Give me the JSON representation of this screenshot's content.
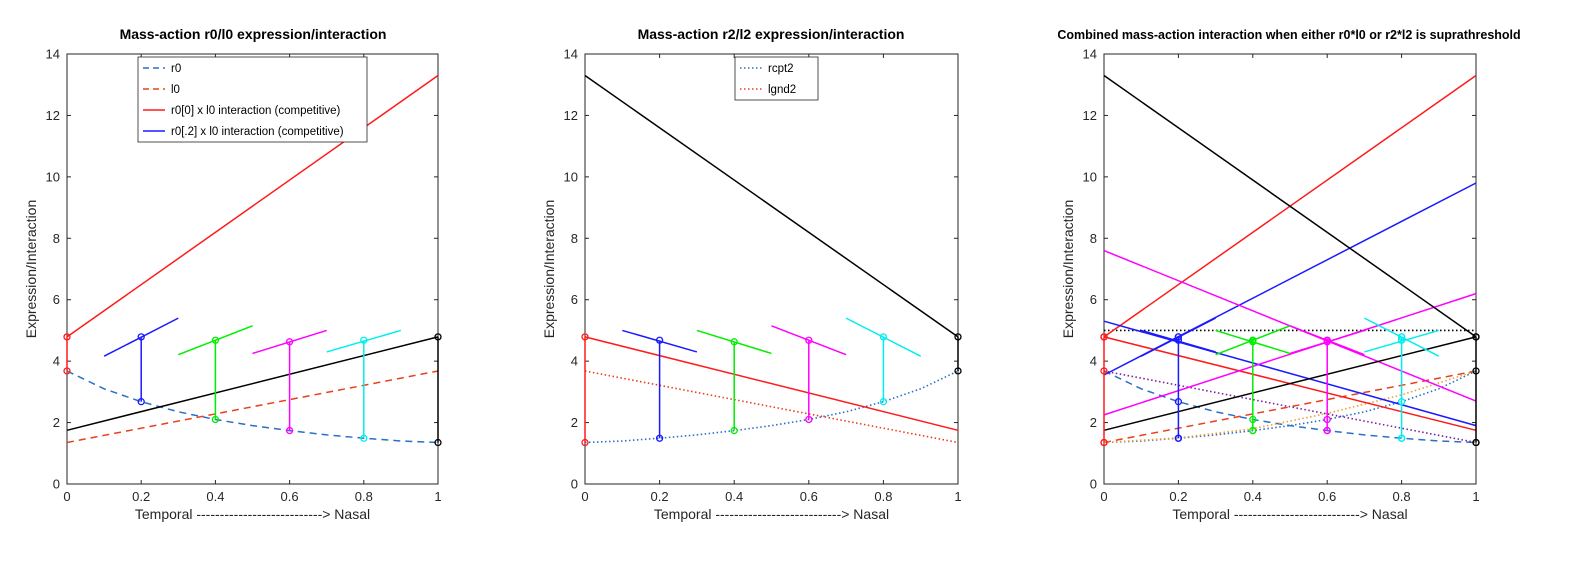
{
  "chart_data": [
    {
      "type": "line",
      "title": "Mass-action r0/l0 expression/interaction",
      "xlabel": "Temporal ---------------------------> Nasal",
      "ylabel": "Expression/Interaction",
      "xlim": [
        0,
        1
      ],
      "ylim": [
        0,
        14
      ],
      "xticks": [
        "0",
        "0.2",
        "0.4",
        "0.6",
        "0.8",
        "1"
      ],
      "yticks": [
        "0",
        "2",
        "4",
        "6",
        "8",
        "10",
        "12",
        "14"
      ],
      "grid": false,
      "legend_position": "top-center",
      "legend": [
        {
          "label": "r0",
          "color": "#2a6fc9",
          "style": "dashed"
        },
        {
          "label": "l0",
          "color": "#e8401c",
          "style": "dashed"
        },
        {
          "label": "r0[0] x l0 interaction (competitive)",
          "color": "#ff1a1a",
          "style": "solid"
        },
        {
          "label": "r0[.2] x l0 interaction (competitive)",
          "color": "#1a1aff",
          "style": "solid"
        }
      ],
      "series": [
        {
          "name": "r0",
          "color": "#2a6fc9",
          "style": "dashed",
          "x": [
            0,
            0.1,
            0.2,
            0.3,
            0.4,
            0.5,
            0.6,
            0.7,
            0.8,
            0.9,
            1
          ],
          "y": [
            3.68,
            3.1,
            2.68,
            2.35,
            2.1,
            1.9,
            1.74,
            1.6,
            1.49,
            1.4,
            1.35
          ]
        },
        {
          "name": "l0",
          "color": "#e8401c",
          "style": "dashed",
          "x": [
            0,
            1
          ],
          "y": [
            1.35,
            3.68
          ]
        },
        {
          "name": "r0[0] x l0 interaction (competitive)",
          "color": "#ff1a1a",
          "style": "solid",
          "x": [
            0,
            1
          ],
          "y": [
            4.79,
            13.3
          ]
        },
        {
          "color": "#000000",
          "style": "solid",
          "x": [
            0,
            1
          ],
          "y": [
            1.75,
            4.79
          ]
        }
      ],
      "vlines": [
        {
          "x": 0,
          "y": [
            3.68,
            4.79
          ],
          "color": "#ff1a1a"
        },
        {
          "x": 0.2,
          "y": [
            2.68,
            4.79
          ],
          "color": "#1a1aff"
        },
        {
          "x": 0.4,
          "y": [
            2.1,
            4.68
          ],
          "color": "#00ee00"
        },
        {
          "x": 0.6,
          "y": [
            1.74,
            4.63
          ],
          "color": "#ff00ff"
        },
        {
          "x": 0.8,
          "y": [
            1.49,
            4.68
          ],
          "color": "#00eeee"
        },
        {
          "x": 1,
          "y": [
            1.35,
            4.79
          ],
          "color": "#000000"
        }
      ],
      "segments": [
        {
          "x": [
            0.1,
            0.3
          ],
          "y": [
            4.16,
            5.4
          ],
          "color": "#1a1aff"
        },
        {
          "x": [
            0.3,
            0.5
          ],
          "y": [
            4.21,
            5.15
          ],
          "color": "#00ee00"
        },
        {
          "x": [
            0.5,
            0.7
          ],
          "y": [
            4.25,
            5.0
          ],
          "color": "#ff00ff"
        },
        {
          "x": [
            0.7,
            0.9
          ],
          "y": [
            4.3,
            5.0
          ],
          "color": "#00eeee"
        }
      ]
    },
    {
      "type": "line",
      "title": "Mass-action r2/l2 expression/interaction",
      "xlabel": "Temporal ---------------------------> Nasal",
      "ylabel": "Expression/Interaction",
      "xlim": [
        0,
        1
      ],
      "ylim": [
        0,
        14
      ],
      "xticks": [
        "0",
        "0.2",
        "0.4",
        "0.6",
        "0.8",
        "1"
      ],
      "yticks": [
        "0",
        "2",
        "4",
        "6",
        "8",
        "10",
        "12",
        "14"
      ],
      "grid": false,
      "legend_position": "top-center",
      "legend": [
        {
          "label": "rcpt2",
          "color": "#2a6fc9",
          "style": "dotted"
        },
        {
          "label": "lgnd2",
          "color": "#e8401c",
          "style": "dotted"
        }
      ],
      "series": [
        {
          "name": "rcpt2",
          "color": "#2a6fc9",
          "style": "dotted",
          "x": [
            0,
            0.1,
            0.2,
            0.3,
            0.4,
            0.5,
            0.6,
            0.7,
            0.8,
            0.9,
            1
          ],
          "y": [
            1.35,
            1.4,
            1.49,
            1.6,
            1.74,
            1.9,
            2.1,
            2.35,
            2.68,
            3.1,
            3.68
          ]
        },
        {
          "name": "lgnd2",
          "color": "#e8401c",
          "style": "dotted",
          "x": [
            0,
            1
          ],
          "y": [
            3.68,
            1.35
          ]
        },
        {
          "color": "#ff1a1a",
          "style": "solid",
          "x": [
            0,
            1
          ],
          "y": [
            4.79,
            1.75
          ]
        },
        {
          "color": "#000000",
          "style": "solid",
          "x": [
            0,
            1
          ],
          "y": [
            13.3,
            4.79
          ]
        }
      ],
      "vlines": [
        {
          "x": 0,
          "y": [
            1.35,
            4.79
          ],
          "color": "#ff1a1a"
        },
        {
          "x": 0.2,
          "y": [
            1.49,
            4.68
          ],
          "color": "#1a1aff"
        },
        {
          "x": 0.4,
          "y": [
            1.74,
            4.63
          ],
          "color": "#00ee00"
        },
        {
          "x": 0.6,
          "y": [
            2.1,
            4.68
          ],
          "color": "#ff00ff"
        },
        {
          "x": 0.8,
          "y": [
            2.68,
            4.79
          ],
          "color": "#00eeee"
        },
        {
          "x": 1,
          "y": [
            3.68,
            4.79
          ],
          "color": "#000000"
        }
      ],
      "segments": [
        {
          "x": [
            0.1,
            0.3
          ],
          "y": [
            5.0,
            4.3
          ],
          "color": "#1a1aff"
        },
        {
          "x": [
            0.3,
            0.5
          ],
          "y": [
            5.0,
            4.25
          ],
          "color": "#00ee00"
        },
        {
          "x": [
            0.5,
            0.7
          ],
          "y": [
            5.15,
            4.21
          ],
          "color": "#ff00ff"
        },
        {
          "x": [
            0.7,
            0.9
          ],
          "y": [
            5.4,
            4.16
          ],
          "color": "#00eeee"
        }
      ]
    },
    {
      "type": "line",
      "title": "Combined mass-action interaction when either r0*l0 or r2*l2 is suprathreshold",
      "xlabel": "Temporal ---------------------------> Nasal",
      "ylabel": "Expression/Interaction",
      "xlim": [
        0,
        1
      ],
      "ylim": [
        0,
        14
      ],
      "xticks": [
        "0",
        "0.2",
        "0.4",
        "0.6",
        "0.8",
        "1"
      ],
      "yticks": [
        "0",
        "2",
        "4",
        "6",
        "8",
        "10",
        "12",
        "14"
      ],
      "grid": false,
      "threshold": 5.0,
      "series": [
        {
          "color": "#2a6fc9",
          "style": "dashed",
          "x": [
            0,
            0.1,
            0.2,
            0.3,
            0.4,
            0.5,
            0.6,
            0.7,
            0.8,
            0.9,
            1
          ],
          "y": [
            3.68,
            3.1,
            2.68,
            2.35,
            2.1,
            1.9,
            1.74,
            1.6,
            1.49,
            1.4,
            1.35
          ]
        },
        {
          "color": "#e8401c",
          "style": "dashed",
          "x": [
            0,
            1
          ],
          "y": [
            1.35,
            3.68
          ]
        },
        {
          "color": "#2a6fc9",
          "style": "dotted",
          "x": [
            0,
            0.1,
            0.2,
            0.3,
            0.4,
            0.5,
            0.6,
            0.7,
            0.8,
            0.9,
            1
          ],
          "y": [
            1.35,
            1.4,
            1.49,
            1.6,
            1.74,
            1.9,
            2.1,
            2.35,
            2.68,
            3.1,
            3.68
          ]
        },
        {
          "color": "#f0a030",
          "style": "dotted",
          "x": [
            0,
            0.2,
            0.4,
            0.6,
            0.8,
            1
          ],
          "y": [
            1.35,
            1.5,
            1.8,
            2.3,
            2.9,
            3.68
          ]
        },
        {
          "color": "#7a1fa0",
          "style": "dotted",
          "x": [
            0,
            1
          ],
          "y": [
            3.68,
            1.35
          ]
        },
        {
          "color": "#000000",
          "style": "dotted",
          "x": [
            0,
            1
          ],
          "y": [
            5.0,
            5.0
          ]
        },
        {
          "color": "#ff1a1a",
          "style": "solid",
          "x": [
            0,
            1
          ],
          "y": [
            4.79,
            13.3
          ]
        },
        {
          "color": "#ff1a1a",
          "style": "solid",
          "x": [
            0,
            1
          ],
          "y": [
            4.79,
            1.75
          ]
        },
        {
          "color": "#1a1aff",
          "style": "solid",
          "x": [
            0,
            1
          ],
          "y": [
            3.55,
            9.8
          ]
        },
        {
          "color": "#1a1aff",
          "style": "solid",
          "x": [
            0,
            1
          ],
          "y": [
            5.3,
            1.9
          ]
        },
        {
          "color": "#ff00ff",
          "style": "solid",
          "x": [
            0,
            1
          ],
          "y": [
            7.6,
            2.7
          ]
        },
        {
          "color": "#ff00ff",
          "style": "solid",
          "x": [
            0,
            1
          ],
          "y": [
            2.25,
            6.2
          ]
        },
        {
          "color": "#000000",
          "style": "solid",
          "x": [
            0,
            1
          ],
          "y": [
            13.3,
            4.79
          ]
        },
        {
          "color": "#000000",
          "style": "solid",
          "x": [
            0,
            1
          ],
          "y": [
            1.75,
            4.79
          ]
        }
      ],
      "vlines": [
        {
          "x": 0,
          "y": [
            1.35,
            4.79
          ],
          "color": "#ff1a1a"
        },
        {
          "x": 0.2,
          "y": [
            1.49,
            4.79
          ],
          "color": "#1a1aff"
        },
        {
          "x": 0.4,
          "y": [
            1.74,
            4.68
          ],
          "color": "#00ee00"
        },
        {
          "x": 0.6,
          "y": [
            1.74,
            4.68
          ],
          "color": "#ff00ff"
        },
        {
          "x": 0.8,
          "y": [
            1.49,
            4.79
          ],
          "color": "#00eeee"
        },
        {
          "x": 1,
          "y": [
            1.35,
            4.79
          ],
          "color": "#000000"
        }
      ],
      "segments": [
        {
          "x": [
            0.1,
            0.3
          ],
          "y": [
            4.16,
            5.4
          ],
          "color": "#1a1aff"
        },
        {
          "x": [
            0.3,
            0.5
          ],
          "y": [
            4.21,
            5.15
          ],
          "color": "#00ee00"
        },
        {
          "x": [
            0.5,
            0.7
          ],
          "y": [
            4.25,
            5.0
          ],
          "color": "#ff00ff"
        },
        {
          "x": [
            0.7,
            0.9
          ],
          "y": [
            4.3,
            5.0
          ],
          "color": "#00eeee"
        },
        {
          "x": [
            0.1,
            0.3
          ],
          "y": [
            5.0,
            4.3
          ],
          "color": "#1a1aff"
        },
        {
          "x": [
            0.3,
            0.5
          ],
          "y": [
            5.0,
            4.25
          ],
          "color": "#00ee00"
        },
        {
          "x": [
            0.5,
            0.7
          ],
          "y": [
            5.15,
            4.21
          ],
          "color": "#ff00ff"
        },
        {
          "x": [
            0.7,
            0.9
          ],
          "y": [
            5.4,
            4.16
          ],
          "color": "#00eeee"
        }
      ],
      "markers": [
        {
          "x": 0,
          "y": [
            1.35,
            3.68,
            4.79
          ],
          "color": "#ff1a1a"
        },
        {
          "x": 0.2,
          "y": [
            1.49,
            2.68,
            4.68,
            4.79
          ],
          "color": "#1a1aff"
        },
        {
          "x": 0.4,
          "y": [
            1.74,
            2.1,
            4.63,
            4.68
          ],
          "color": "#00ee00"
        },
        {
          "x": 0.6,
          "y": [
            1.74,
            2.1,
            4.63,
            4.68
          ],
          "color": "#ff00ff"
        },
        {
          "x": 0.8,
          "y": [
            1.49,
            2.68,
            4.68,
            4.79
          ],
          "color": "#00eeee"
        },
        {
          "x": 1,
          "y": [
            1.35,
            3.68,
            4.79
          ],
          "color": "#000000"
        }
      ]
    }
  ]
}
